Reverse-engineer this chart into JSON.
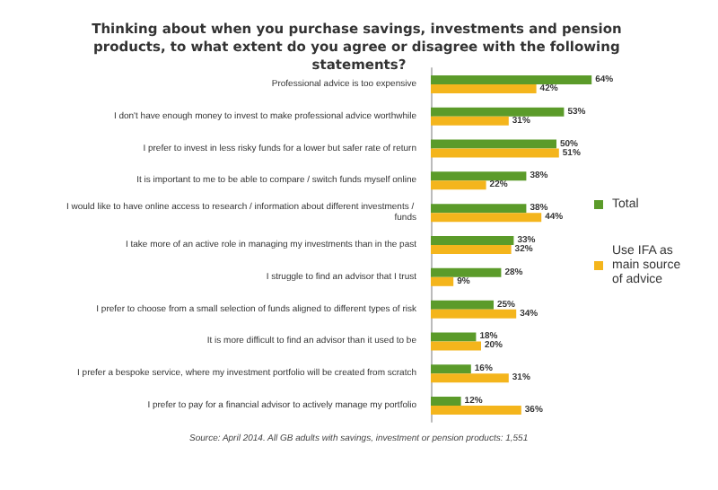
{
  "chart_data": {
    "type": "bar",
    "orientation": "horizontal",
    "title": "Thinking about when you purchase savings, investments and pension products, to what extent do you agree or disagree with the following statements?",
    "categories": [
      "Professional advice is too expensive",
      "I don't have enough money to invest to make professional advice worthwhile",
      "I prefer to invest in less risky funds for a lower but safer rate of return",
      "It is important to me to be able to compare / switch funds myself online",
      "I would like to have online access to research / information about different investments / funds",
      "I take more of an active role in managing my investments than in the past",
      "I struggle to find an advisor that I trust",
      "I prefer to choose from a small selection of funds aligned to different types of risk",
      "It is more difficult to find an advisor than it used to be",
      "I prefer a bespoke service, where my investment portfolio will be created from scratch",
      "I prefer to pay for a financial advisor to actively manage my portfolio"
    ],
    "series": [
      {
        "name": "Total",
        "color": "#5b9b2a",
        "values": [
          64,
          53,
          50,
          38,
          38,
          33,
          28,
          25,
          18,
          16,
          12
        ],
        "value_labels": [
          "64%",
          "53%",
          "50%",
          "38%",
          "38%",
          "33%",
          "28%",
          "25%",
          "18%",
          "16%",
          "12%"
        ]
      },
      {
        "name": "Use IFA as main source of advice",
        "color": "#f4b51c",
        "values": [
          42,
          31,
          51,
          22,
          44,
          32,
          9,
          34,
          20,
          31,
          36
        ],
        "value_labels": [
          "42%",
          "31%",
          "51%",
          "22%",
          "44%",
          "32%",
          "9%",
          "34%",
          "20%",
          "31%",
          "36%"
        ]
      }
    ],
    "legend": "right",
    "grid": false,
    "annotations": [
      "Source: April 2014. All GB adults with savings, investment or pension products: 1,551"
    ]
  }
}
